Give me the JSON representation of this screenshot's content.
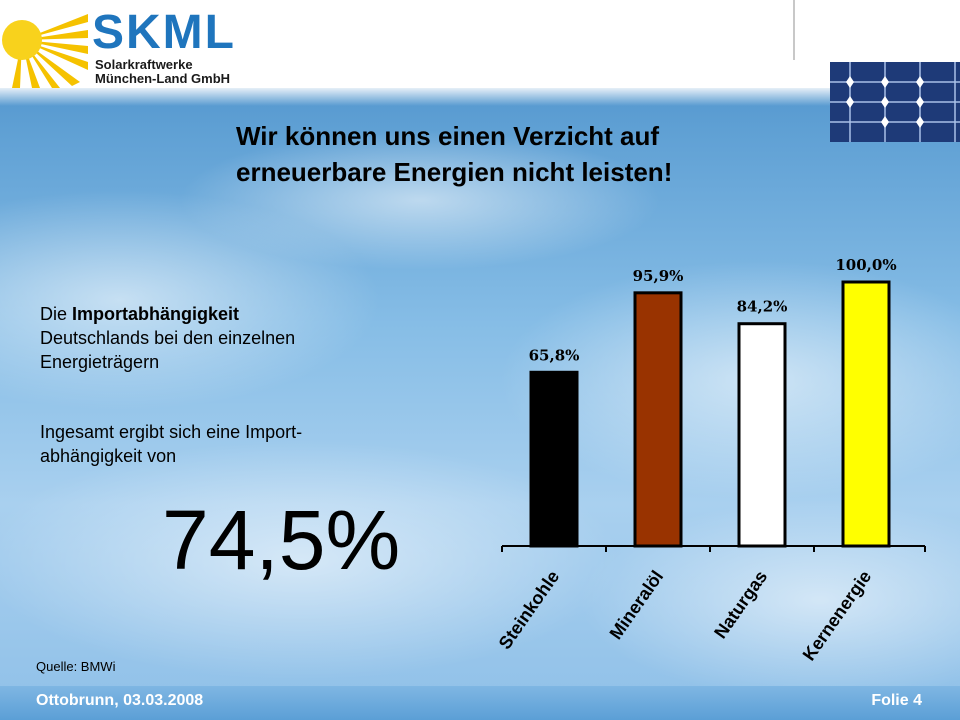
{
  "brand": {
    "name": "SKML",
    "line1": "Solarkraftwerke",
    "line2": "München-Land GmbH"
  },
  "slide": {
    "title_line1": "Wir können uns einen Verzicht auf",
    "title_line2": "erneuerbare Energien nicht leisten!",
    "desc_prefix": "Die ",
    "desc_bold": "Importabhängigkeit",
    "desc_line2": "Deutschlands bei den einzelnen",
    "desc_line3": "Energieträgern",
    "desc2_line1": "Ingesamt ergibt sich eine Import-",
    "desc2_line2": "abhängigkeit von",
    "big_value": "74,5%",
    "source": "Quelle: BMWi"
  },
  "footer": {
    "date": "Ottobrunn, 03.03.2008",
    "page": "Folie 4"
  },
  "colors": {
    "brand_blue": "#1f75bd",
    "sun_yellow": "#f5c200"
  },
  "chart_data": {
    "type": "bar",
    "categories": [
      "Steinkohle",
      "Mineralöl",
      "Naturgas",
      "Kernenergie"
    ],
    "values": [
      65.8,
      95.9,
      84.2,
      100.0
    ],
    "data_labels": [
      "65,8%",
      "95,9%",
      "84,2%",
      "100,0%"
    ],
    "bar_colors": [
      "#000000",
      "#993300",
      "#ffffff",
      "#ffff00"
    ],
    "ylim": [
      0,
      100
    ],
    "grid": false,
    "legend": "none"
  }
}
